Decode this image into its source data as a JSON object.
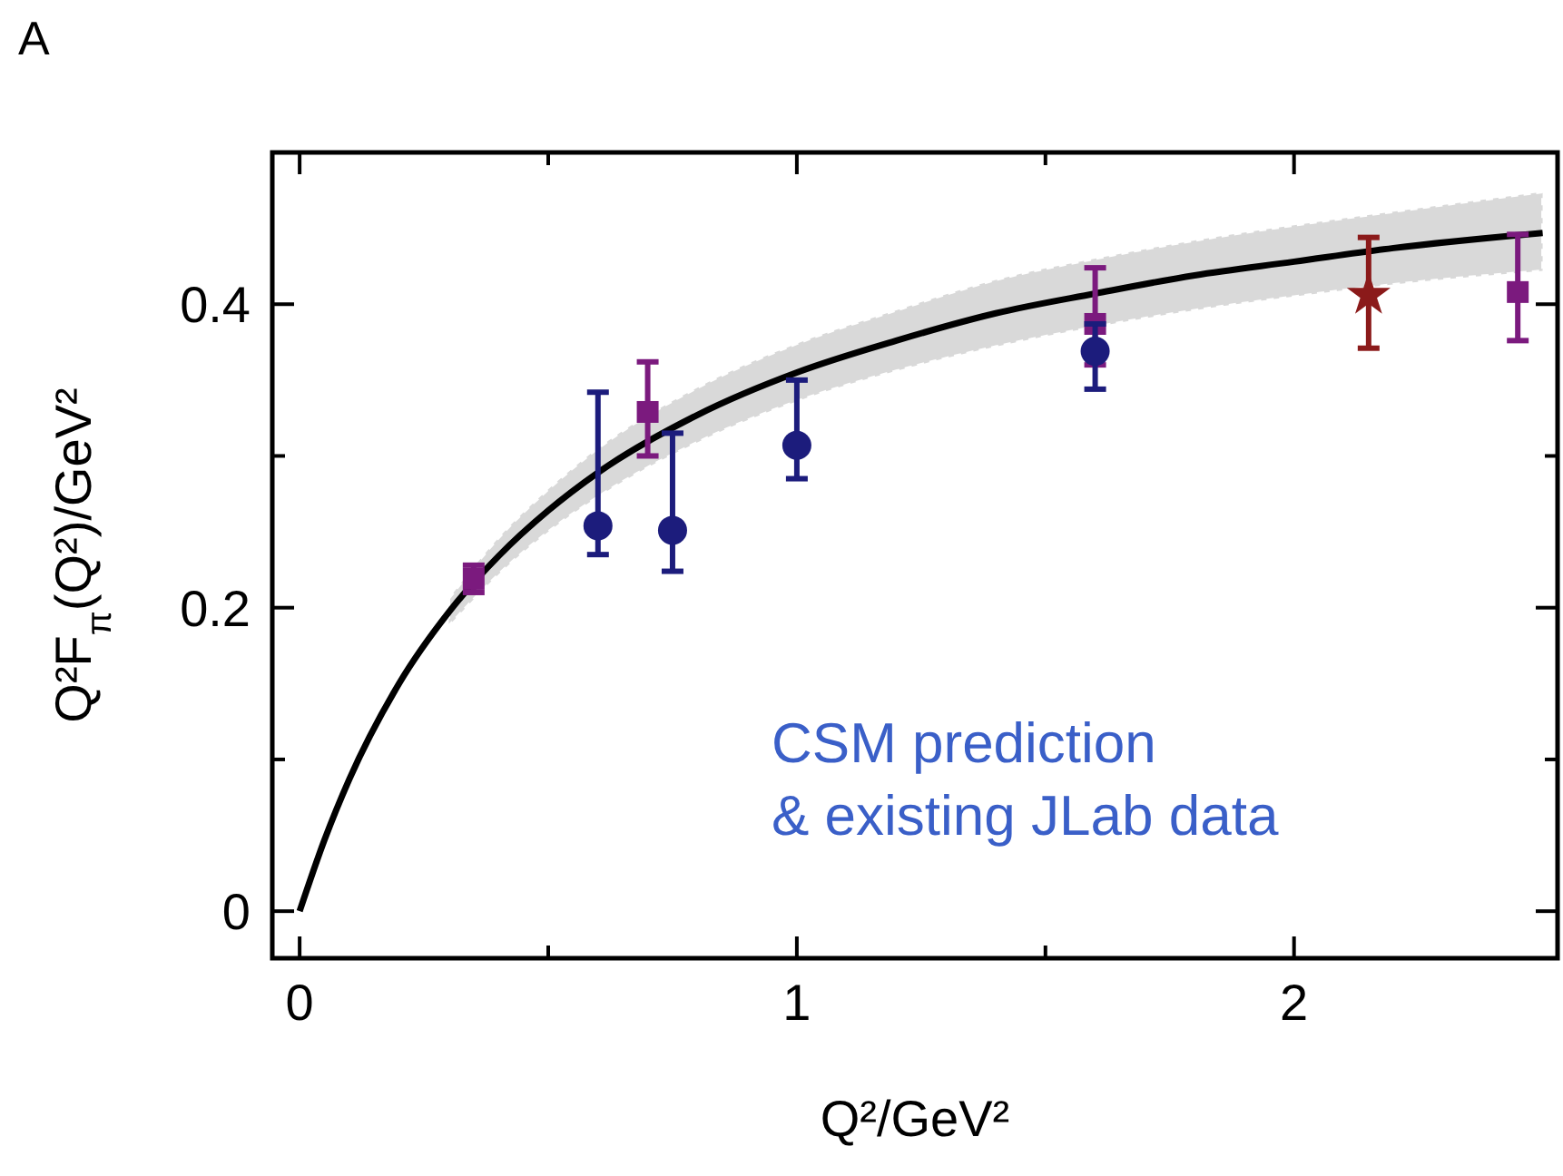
{
  "chart_data": {
    "type": "scatter",
    "title": "A",
    "xlabel": "Q²/GeV²",
    "ylabel": "Q²F$_{π}$(Q²)/GeV²",
    "xlim": [
      -0.055,
      2.53
    ],
    "ylim": [
      -0.031,
      0.5
    ],
    "xticks": [
      0,
      {
        "value": 0.5,
        "label": null
      },
      1,
      {
        "value": 1.5,
        "label": null
      },
      2
    ],
    "yticks": [
      0,
      {
        "value": 0.1,
        "label": null
      },
      0.2,
      {
        "value": 0.3,
        "label": null
      },
      0.4
    ],
    "grid": false,
    "annotations": [
      "CSM prediction\n& existing JLab data"
    ],
    "series": [
      {
        "type": "line",
        "color": "#000000",
        "marker": "none",
        "line_style": "solid",
        "x": [
          0,
          0.05,
          0.1,
          0.2,
          0.3,
          0.4,
          0.5,
          0.6,
          0.8,
          1.0,
          1.2,
          1.4,
          1.6,
          1.8,
          2.0,
          2.2,
          2.5
        ],
        "values": [
          0,
          0.047,
          0.087,
          0.15,
          0.197,
          0.234,
          0.264,
          0.289,
          0.327,
          0.355,
          0.376,
          0.394,
          0.407,
          0.419,
          0.428,
          0.437,
          0.447
        ],
        "lower": [
          null,
          null,
          null,
          null,
          0.188,
          0.222,
          0.25,
          0.273,
          0.309,
          0.336,
          0.356,
          0.372,
          0.385,
          0.396,
          0.405,
          0.413,
          0.422
        ],
        "upper": [
          null,
          null,
          null,
          null,
          0.206,
          0.246,
          0.278,
          0.305,
          0.345,
          0.374,
          0.396,
          0.416,
          0.43,
          0.442,
          0.452,
          0.461,
          0.474
        ]
      },
      {
        "type": "scatter",
        "color": "#7b1a7e",
        "marker": "square",
        "x": [
          0.35,
          0.7,
          1.6,
          2.45
        ],
        "values": [
          0.219,
          0.329,
          0.387,
          0.408
        ],
        "errors": [
          [
            0.21,
            0.228
          ],
          [
            0.3,
            0.362
          ],
          [
            0.36,
            0.424
          ],
          [
            0.376,
            0.446
          ]
        ]
      },
      {
        "type": "scatter",
        "color": "#1c1c7c",
        "marker": "circle",
        "x": [
          0.6,
          0.75,
          1.0,
          1.6
        ],
        "values": [
          0.254,
          0.251,
          0.307,
          0.369
        ],
        "errors": [
          [
            0.235,
            0.342
          ],
          [
            0.224,
            0.315
          ],
          [
            0.285,
            0.35
          ],
          [
            0.344,
            0.387
          ]
        ]
      },
      {
        "type": "scatter",
        "color": "#8b1a1a",
        "marker": "star",
        "x": [
          2.15
        ],
        "values": [
          0.406
        ],
        "errors": [
          [
            0.371,
            0.444
          ]
        ]
      }
    ]
  }
}
